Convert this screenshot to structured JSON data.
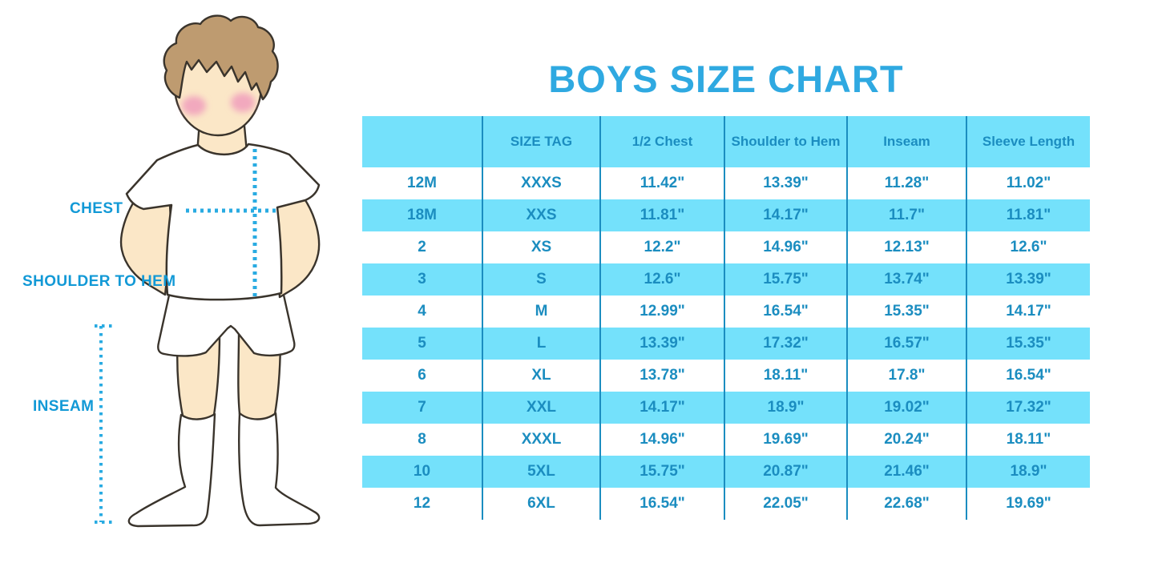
{
  "title": "BOYS SIZE CHART",
  "figure": {
    "name": "boy-measurement-illustration",
    "labels": {
      "chest": "CHEST",
      "shoulder_to_hem": "SHOULDER TO HEM",
      "inseam": "INSEAM"
    }
  },
  "colors": {
    "title_blue": "#2FA9E1",
    "label_blue": "#1299D6",
    "dotted_line": "#29ABE2",
    "row_blue": "#74E1FB",
    "table_text": "#1B8DC0",
    "skin": "#FBE7C7",
    "hair": "#BE9B70",
    "cheek": "#F2A9BE",
    "outline": "#3A342C"
  },
  "chart_data": {
    "type": "table",
    "title": "BOYS SIZE CHART",
    "units": "inches",
    "columns": [
      "",
      "SIZE TAG",
      "1/2 Chest",
      "Shoulder to Hem",
      "Inseam",
      "Sleeve Length"
    ],
    "rows": [
      [
        "12M",
        "XXXS",
        "11.42\"",
        "13.39\"",
        "11.28\"",
        "11.02\""
      ],
      [
        "18M",
        "XXS",
        "11.81\"",
        "14.17\"",
        "11.7\"",
        "11.81\""
      ],
      [
        "2",
        "XS",
        "12.2\"",
        "14.96\"",
        "12.13\"",
        "12.6\""
      ],
      [
        "3",
        "S",
        "12.6\"",
        "15.75\"",
        "13.74\"",
        "13.39\""
      ],
      [
        "4",
        "M",
        "12.99\"",
        "16.54\"",
        "15.35\"",
        "14.17\""
      ],
      [
        "5",
        "L",
        "13.39\"",
        "17.32\"",
        "16.57\"",
        "15.35\""
      ],
      [
        "6",
        "XL",
        "13.78\"",
        "18.11\"",
        "17.8\"",
        "16.54\""
      ],
      [
        "7",
        "XXL",
        "14.17\"",
        "18.9\"",
        "19.02\"",
        "17.32\""
      ],
      [
        "8",
        "XXXL",
        "14.96\"",
        "19.69\"",
        "20.24\"",
        "18.11\""
      ],
      [
        "10",
        "5XL",
        "15.75\"",
        "20.87\"",
        "21.46\"",
        "18.9\""
      ],
      [
        "12",
        "6XL",
        "16.54\"",
        "22.05\"",
        "22.68\"",
        "19.69\""
      ]
    ],
    "layout": {
      "header_background": "light-blue",
      "row_striping": "alternating white / light-blue starting with white",
      "column_dividers": "vertical blue lines between columns only"
    }
  }
}
